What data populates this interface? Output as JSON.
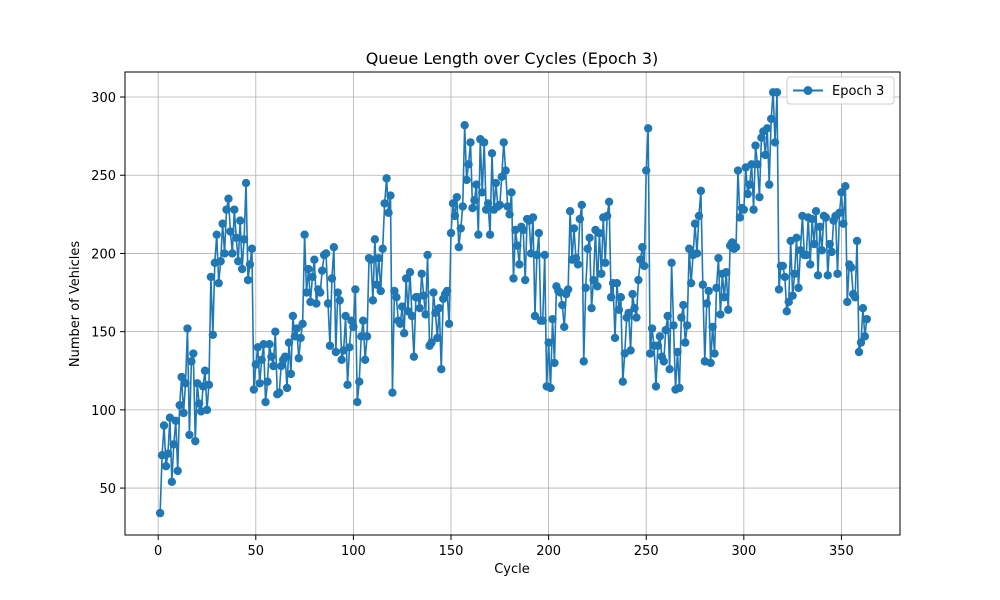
{
  "chart_data": {
    "type": "line",
    "title": "Queue Length over Cycles (Epoch 3)",
    "xlabel": "Cycle",
    "ylabel": "Number of Vehicles",
    "xlim": [
      -17,
      380
    ],
    "ylim": [
      20,
      316
    ],
    "xticks": [
      0,
      50,
      100,
      150,
      200,
      250,
      300,
      350
    ],
    "yticks": [
      50,
      100,
      150,
      200,
      250,
      300
    ],
    "grid": true,
    "legend_position": "top-right",
    "series": [
      {
        "name": "Epoch 3",
        "color": "#1f77b4",
        "marker": "circle",
        "x": [
          1,
          2,
          3,
          4,
          5,
          6,
          7,
          8,
          9,
          10,
          11,
          12,
          13,
          14,
          15,
          16,
          17,
          18,
          19,
          20,
          21,
          22,
          23,
          24,
          25,
          26,
          27,
          28,
          29,
          30,
          31,
          32,
          33,
          34,
          35,
          36,
          37,
          38,
          39,
          40,
          41,
          42,
          43,
          44,
          45,
          46,
          47,
          48,
          49,
          50,
          51,
          52,
          53,
          54,
          55,
          56,
          57,
          58,
          59,
          60,
          61,
          62,
          63,
          64,
          65,
          66,
          67,
          68,
          69,
          70,
          71,
          72,
          73,
          74,
          75,
          76,
          77,
          78,
          79,
          80,
          81,
          82,
          83,
          84,
          85,
          86,
          87,
          88,
          89,
          90,
          91,
          92,
          93,
          94,
          95,
          96,
          97,
          98,
          99,
          100,
          101,
          102,
          103,
          104,
          105,
          106,
          107,
          108,
          109,
          110,
          111,
          112,
          113,
          114,
          115,
          116,
          117,
          118,
          119,
          120,
          121,
          122,
          123,
          124,
          125,
          126,
          127,
          128,
          129,
          130,
          131,
          132,
          133,
          134,
          135,
          136,
          137,
          138,
          139,
          140,
          141,
          142,
          143,
          144,
          145,
          146,
          147,
          148,
          149,
          150,
          151,
          152,
          153,
          154,
          155,
          156,
          157,
          158,
          159,
          160,
          161,
          162,
          163,
          164,
          165,
          166,
          167,
          168,
          169,
          170,
          171,
          172,
          173,
          174,
          175,
          176,
          177,
          178,
          179,
          180,
          181,
          182,
          183,
          184,
          185,
          186,
          187,
          188,
          189,
          190,
          191,
          192,
          193,
          194,
          195,
          196,
          197,
          198,
          199,
          200,
          201,
          202,
          203,
          204,
          205,
          206,
          207,
          208,
          209,
          210,
          211,
          212,
          213,
          214,
          215,
          216,
          217,
          218,
          219,
          220,
          221,
          222,
          223,
          224,
          225,
          226,
          227,
          228,
          229,
          230,
          231,
          232,
          233,
          234,
          235,
          236,
          237,
          238,
          239,
          240,
          241,
          242,
          243,
          244,
          245,
          246,
          247,
          248,
          249,
          250,
          251,
          252,
          253,
          254,
          255,
          256,
          257,
          258,
          259,
          260,
          261,
          262,
          263,
          264,
          265,
          266,
          267,
          268,
          269,
          270,
          271,
          272,
          273,
          274,
          275,
          276,
          277,
          278,
          279,
          280,
          281,
          282,
          283,
          284,
          285,
          286,
          287,
          288,
          289,
          290,
          291,
          292,
          293,
          294,
          295,
          296,
          297,
          298,
          299,
          300,
          301,
          302,
          303,
          304,
          305,
          306,
          307,
          308,
          309,
          310,
          311,
          312,
          313,
          314,
          315,
          316,
          317,
          318,
          319,
          320,
          321,
          322,
          323,
          324,
          325,
          326,
          327,
          328,
          329,
          330,
          331,
          332,
          333,
          334,
          335,
          336,
          337,
          338,
          339,
          340,
          341,
          342,
          343,
          344,
          345,
          346,
          347,
          348,
          349,
          350,
          351,
          352,
          353,
          354,
          355,
          356,
          357,
          358,
          359,
          360,
          361,
          362,
          363
        ],
        "y": [
          34,
          71,
          90,
          64,
          72,
          95,
          54,
          78,
          93,
          61,
          103,
          121,
          98,
          117,
          152,
          84,
          131,
          136,
          80,
          117,
          104,
          99,
          115,
          125,
          100,
          116,
          185,
          148,
          194,
          212,
          181,
          195,
          219,
          200,
          228,
          235,
          214,
          200,
          228,
          210,
          195,
          221,
          190,
          209,
          245,
          183,
          193,
          203,
          113,
          129,
          140,
          117,
          132,
          142,
          105,
          118,
          142,
          134,
          128,
          150,
          110,
          111,
          128,
          132,
          134,
          114,
          143,
          123,
          160,
          147,
          152,
          133,
          146,
          155,
          212,
          175,
          190,
          169,
          185,
          196,
          168,
          177,
          175,
          189,
          199,
          200,
          168,
          141,
          184,
          204,
          137,
          175,
          170,
          132,
          138,
          160,
          116,
          140,
          157,
          153,
          177,
          105,
          118,
          147,
          157,
          132,
          147,
          197,
          196,
          170,
          209,
          180,
          197,
          176,
          203,
          232,
          248,
          226,
          237,
          111,
          176,
          172,
          157,
          155,
          166,
          149,
          184,
          163,
          188,
          160,
          134,
          172,
          172,
          165,
          187,
          173,
          161,
          199,
          141,
          143,
          175,
          162,
          146,
          165,
          126,
          171,
          174,
          176,
          155,
          213,
          232,
          224,
          236,
          204,
          216,
          230,
          282,
          247,
          257,
          271,
          229,
          234,
          244,
          212,
          273,
          239,
          271,
          228,
          232,
          212,
          264,
          228,
          245,
          230,
          231,
          249,
          271,
          253,
          230,
          225,
          239,
          184,
          215,
          205,
          193,
          217,
          215,
          183,
          222,
          221,
          200,
          223,
          160,
          199,
          213,
          157,
          157,
          199,
          115,
          143,
          114,
          158,
          130,
          179,
          176,
          175,
          167,
          153,
          174,
          177,
          227,
          196,
          216,
          197,
          193,
          222,
          231,
          131,
          178,
          203,
          210,
          165,
          183,
          215,
          179,
          213,
          187,
          223,
          194,
          224,
          233,
          172,
          181,
          146,
          181,
          164,
          172,
          118,
          136,
          159,
          162,
          138,
          174,
          165,
          159,
          183,
          196,
          204,
          192,
          253,
          280,
          136,
          152,
          141,
          115,
          141,
          147,
          134,
          131,
          151,
          160,
          126,
          194,
          154,
          113,
          137,
          114,
          159,
          167,
          143,
          154,
          203,
          181,
          199,
          219,
          200,
          224,
          240,
          180,
          131,
          168,
          176,
          130,
          153,
          136,
          178,
          197,
          161,
          187,
          172,
          188,
          164,
          205,
          207,
          203,
          204,
          253,
          223,
          229,
          228,
          255,
          238,
          244,
          257,
          228,
          269,
          257,
          236,
          274,
          278,
          263,
          280,
          244,
          286,
          303,
          271,
          303,
          177,
          192,
          192,
          185,
          163,
          169,
          208,
          173,
          187,
          210,
          178,
          202,
          224,
          199,
          199,
          223,
          193,
          222,
          206,
          227,
          186,
          217,
          202,
          224,
          223,
          186,
          206,
          201,
          221,
          224,
          187,
          226,
          239,
          219,
          243,
          169,
          193,
          191,
          174,
          172,
          208,
          137,
          143,
          165,
          147,
          158
        ],
        "show_every": 1
      }
    ]
  }
}
